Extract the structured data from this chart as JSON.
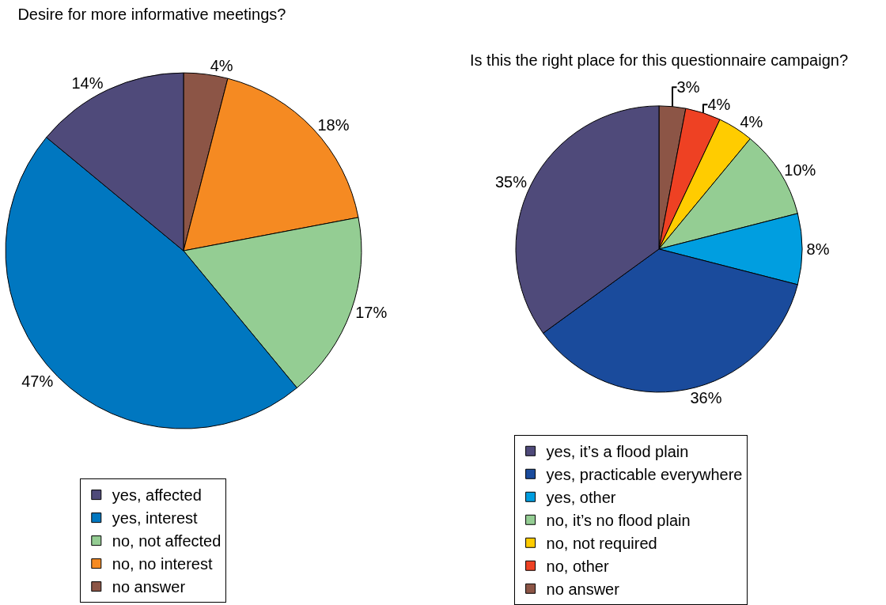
{
  "chart_data": [
    {
      "type": "pie",
      "title": "Desire for more informative meetings?",
      "categories": [
        "yes, affected",
        "yes, interest",
        "no, not affected",
        "no, no interest",
        "no answer"
      ],
      "values": [
        14,
        47,
        17,
        18,
        4
      ],
      "value_labels": [
        "14%",
        "47%",
        "17%",
        "18%",
        "4%"
      ],
      "colors": [
        "#4f4a7a",
        "#0077c0",
        "#94cd93",
        "#f58a22",
        "#8c5546"
      ],
      "legend": "bottom"
    },
    {
      "type": "pie",
      "title": "Is this the right place for this questionnaire campaign?",
      "categories": [
        "yes, it’s a flood plain",
        "yes, practicable everywhere",
        "yes, other",
        "no, it’s no flood plain",
        "no, not required",
        "no, other",
        "no answer"
      ],
      "values": [
        35,
        36,
        8,
        10,
        4,
        4,
        3
      ],
      "value_labels": [
        "35%",
        "36%",
        "8%",
        "10%",
        "4%",
        "4%",
        "3%"
      ],
      "colors": [
        "#4f4a7a",
        "#1a4b9c",
        "#009ee0",
        "#94cd93",
        "#ffcc00",
        "#ee4123",
        "#8c5546"
      ],
      "legend": "bottom"
    }
  ]
}
